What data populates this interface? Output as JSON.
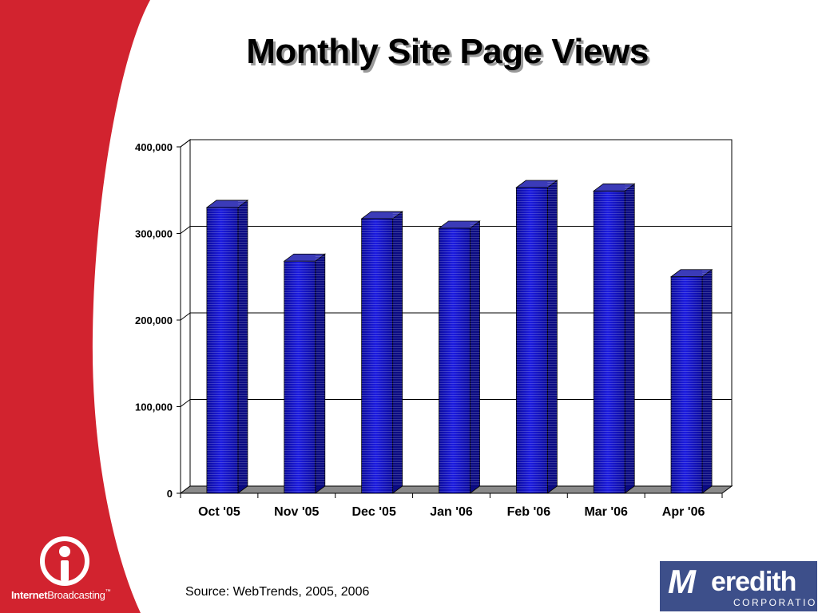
{
  "slide": {
    "title": "Monthly Site Page Views",
    "source": "Source: WebTrends, 2005, 2006"
  },
  "logos": {
    "internet_broadcasting": {
      "bold": "Internet",
      "regular": "Broadcasting",
      "tm": "™"
    },
    "meredith": {
      "mark": "M",
      "name": "eredith",
      "corporation": "CORPORATION"
    }
  },
  "colors": {
    "band": "#d2232f",
    "bar_front": "#1a1adf",
    "bar_side": "#0b0b82",
    "bar_top": "#3b3bb8",
    "floor": "#8a8a8a",
    "meredith_bg": "#3d4f8a"
  },
  "chart_data": {
    "type": "bar",
    "title": "",
    "xlabel": "",
    "ylabel": "",
    "categories": [
      "Oct '05",
      "Nov '05",
      "Dec '05",
      "Jan '06",
      "Feb '06",
      "Mar '06",
      "Apr '06"
    ],
    "values": [
      330000,
      268000,
      317000,
      306000,
      353000,
      349000,
      250000
    ],
    "ylim": [
      0,
      400000
    ],
    "yticks": [
      0,
      100000,
      200000,
      300000,
      400000
    ],
    "ytick_labels": [
      "0",
      "100,000",
      "200,000",
      "300,000",
      "400,000"
    ],
    "grid": true,
    "legend": false,
    "style": "3d-column"
  }
}
